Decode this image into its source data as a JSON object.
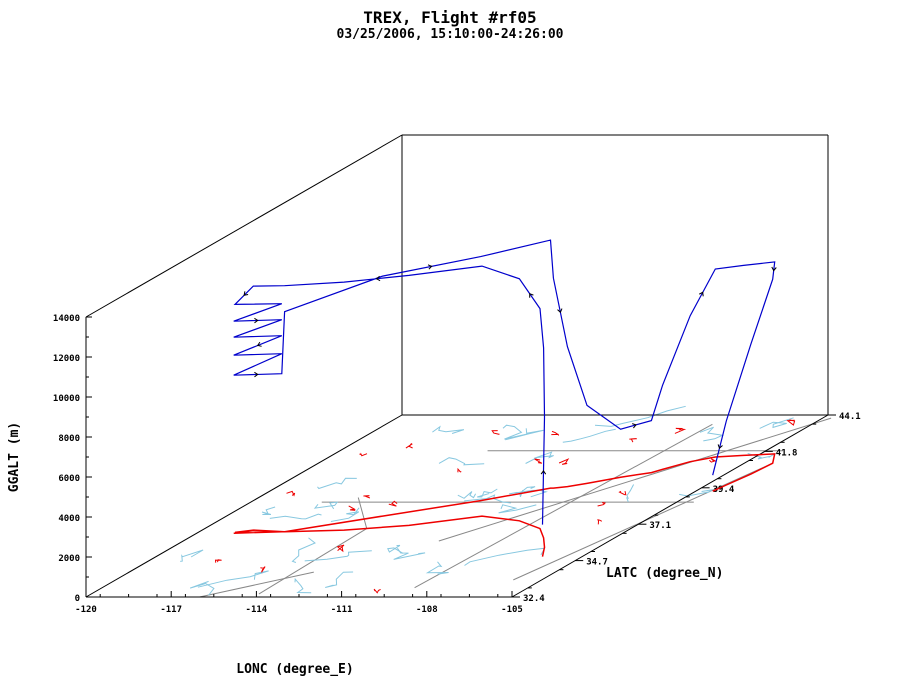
{
  "chart_data": {
    "type": "line",
    "subtype": "3d-flight-track",
    "title": "TREX, Flight #rf05",
    "subtitle": "03/25/2006, 15:10:00-24:26:00",
    "xlabel": "LONC (degree_E)",
    "ylabel": "LATC (degree_N)",
    "zlabel": "GGALT (m)",
    "x_ticks": [
      "-120",
      "-117",
      "-114",
      "-111",
      "-108",
      "-105"
    ],
    "y_ticks": [
      "32.4",
      "34.7",
      "37.1",
      "39.4",
      "41.8",
      "44.1"
    ],
    "z_ticks": [
      "0",
      "2000",
      "4000",
      "6000",
      "8000",
      "10000",
      "12000",
      "14000"
    ],
    "xlim": [
      -120,
      -105
    ],
    "ylim": [
      32.4,
      44.1
    ],
    "zlim": [
      0,
      14000
    ],
    "colors": {
      "track": "#0000cc",
      "ground_track": "#ee0000",
      "map_water": "#88c8e0",
      "map_borders": "#888888",
      "axes": "#000000"
    },
    "series": [
      {
        "points": [
          {
            "lon": -106.4,
            "lat": 35.0,
            "alt": 1600
          },
          {
            "lon": -106.9,
            "lat": 35.6,
            "alt": 6500
          },
          {
            "lon": -107.5,
            "lat": 36.2,
            "alt": 9500
          },
          {
            "lon": -108.2,
            "lat": 36.8,
            "alt": 11000
          },
          {
            "lon": -109.4,
            "lat": 37.3,
            "alt": 12100
          },
          {
            "lon": -111.0,
            "lat": 37.6,
            "alt": 12500
          },
          {
            "lon": -113.0,
            "lat": 37.0,
            "alt": 12500
          },
          {
            "lon": -115.0,
            "lat": 36.7,
            "alt": 12400
          },
          {
            "lon": -117.0,
            "lat": 36.6,
            "alt": 12300
          },
          {
            "lon": -118.2,
            "lat": 36.7,
            "alt": 12200
          },
          {
            "lon": -118.7,
            "lat": 36.55,
            "alt": 11400
          },
          {
            "lon": -117.1,
            "lat": 36.6,
            "alt": 11400
          },
          {
            "lon": -118.7,
            "lat": 36.5,
            "alt": 10600
          },
          {
            "lon": -117.1,
            "lat": 36.6,
            "alt": 10600
          },
          {
            "lon": -118.7,
            "lat": 36.5,
            "alt": 9800
          },
          {
            "lon": -117.1,
            "lat": 36.6,
            "alt": 9800
          },
          {
            "lon": -118.7,
            "lat": 36.5,
            "alt": 8900
          },
          {
            "lon": -117.1,
            "lat": 36.6,
            "alt": 8900
          },
          {
            "lon": -118.7,
            "lat": 36.5,
            "alt": 7900
          },
          {
            "lon": -117.1,
            "lat": 36.6,
            "alt": 7900
          },
          {
            "lon": -117.0,
            "lat": 36.6,
            "alt": 11000
          },
          {
            "lon": -114.5,
            "lat": 37.6,
            "alt": 12000
          },
          {
            "lon": -112.0,
            "lat": 38.6,
            "alt": 12200
          },
          {
            "lon": -110.3,
            "lat": 39.4,
            "alt": 12400
          },
          {
            "lon": -110.2,
            "lat": 39.4,
            "alt": 10500
          },
          {
            "lon": -109.8,
            "lat": 39.5,
            "alt": 7000
          },
          {
            "lon": -109.3,
            "lat": 39.7,
            "alt": 3900
          },
          {
            "lon": -108.5,
            "lat": 40.1,
            "alt": 2400
          },
          {
            "lon": -107.7,
            "lat": 40.4,
            "alt": 2600
          },
          {
            "lon": -107.5,
            "lat": 40.6,
            "alt": 4200
          },
          {
            "lon": -107.0,
            "lat": 41.1,
            "alt": 7300
          },
          {
            "lon": -106.4,
            "lat": 41.4,
            "alt": 9400
          },
          {
            "lon": -105.5,
            "lat": 41.5,
            "alt": 9500
          },
          {
            "lon": -104.5,
            "lat": 41.6,
            "alt": 9600
          },
          {
            "lon": -104.0,
            "lat": 41.0,
            "alt": 9200
          },
          {
            "lon": -104.1,
            "lat": 40.3,
            "alt": 6500
          },
          {
            "lon": -104.3,
            "lat": 39.6,
            "alt": 3200
          },
          {
            "lon": -104.4,
            "lat": 39.2,
            "alt": 800
          }
        ]
      }
    ]
  }
}
